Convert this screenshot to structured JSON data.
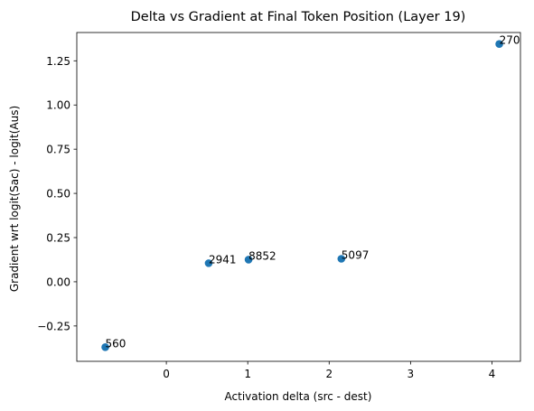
{
  "chart_data": {
    "type": "scatter",
    "title": "Delta vs Gradient at Final Token Position (Layer 19)",
    "xlabel": "Activation delta (src - dest)",
    "ylabel": "Gradient wrt logit(Sac) - logit(Aus)",
    "xlim": [
      -1.1,
      4.35
    ],
    "ylim": [
      -0.45,
      1.41
    ],
    "xticks": [
      0,
      1,
      2,
      3,
      4
    ],
    "yticks": [
      -0.25,
      0.0,
      0.25,
      0.5,
      0.75,
      1.0,
      1.25
    ],
    "xtick_labels": [
      "0",
      "1",
      "2",
      "3",
      "4"
    ],
    "ytick_labels": [
      "−0.25",
      "0.00",
      "0.25",
      "0.50",
      "0.75",
      "1.00",
      "1.25"
    ],
    "grid": false,
    "marker_color": "#1f77b4",
    "points": [
      {
        "x": -0.75,
        "y": -0.37,
        "label": "560"
      },
      {
        "x": 0.52,
        "y": 0.105,
        "label": "2941"
      },
      {
        "x": 1.01,
        "y": 0.125,
        "label": "8852"
      },
      {
        "x": 2.15,
        "y": 0.13,
        "label": "5097"
      },
      {
        "x": 4.09,
        "y": 1.345,
        "label": "270"
      }
    ]
  }
}
